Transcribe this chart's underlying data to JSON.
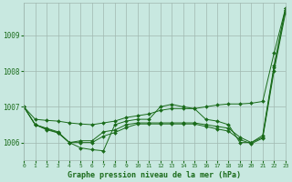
{
  "title": "Graphe pression niveau de la mer (hPa)",
  "bg_color": "#c8e8e0",
  "grid_color": "#a0b8b0",
  "line_color": "#1a6b1a",
  "xlim": [
    0,
    23
  ],
  "ylim": [
    1005.5,
    1009.9
  ],
  "yticks": [
    1006,
    1007,
    1008,
    1009
  ],
  "xticks": [
    0,
    1,
    2,
    3,
    4,
    5,
    6,
    7,
    8,
    9,
    10,
    11,
    12,
    13,
    14,
    15,
    16,
    17,
    18,
    19,
    20,
    21,
    22,
    23
  ],
  "series": [
    [
      1007.0,
      1006.5,
      1006.4,
      1006.3,
      1006.0,
      1005.85,
      1005.8,
      1005.77,
      1006.5,
      1006.6,
      1006.65,
      1006.65,
      1007.0,
      1007.07,
      1007.0,
      1006.95,
      1006.65,
      1006.6,
      1006.5,
      1006.0,
      1006.0,
      1006.2,
      1008.15,
      1009.75
    ],
    [
      1007.0,
      1006.5,
      1006.38,
      1006.28,
      1006.0,
      1006.05,
      1006.05,
      1006.3,
      1006.35,
      1006.5,
      1006.55,
      1006.55,
      1006.55,
      1006.55,
      1006.55,
      1006.55,
      1006.5,
      1006.45,
      1006.4,
      1006.15,
      1006.0,
      1006.15,
      1008.1,
      1009.7
    ],
    [
      1007.0,
      1006.5,
      1006.36,
      1006.27,
      1006.0,
      1006.0,
      1006.0,
      1006.18,
      1006.28,
      1006.42,
      1006.52,
      1006.52,
      1006.52,
      1006.52,
      1006.52,
      1006.52,
      1006.45,
      1006.38,
      1006.32,
      1006.08,
      1005.97,
      1006.12,
      1008.0,
      1009.62
    ],
    [
      1007.0,
      1006.65,
      1006.62,
      1006.6,
      1006.55,
      1006.52,
      1006.5,
      1006.55,
      1006.6,
      1006.7,
      1006.75,
      1006.8,
      1006.9,
      1006.95,
      1006.95,
      1006.95,
      1007.0,
      1007.05,
      1007.08,
      1007.08,
      1007.1,
      1007.15,
      1008.5,
      1009.75
    ]
  ]
}
